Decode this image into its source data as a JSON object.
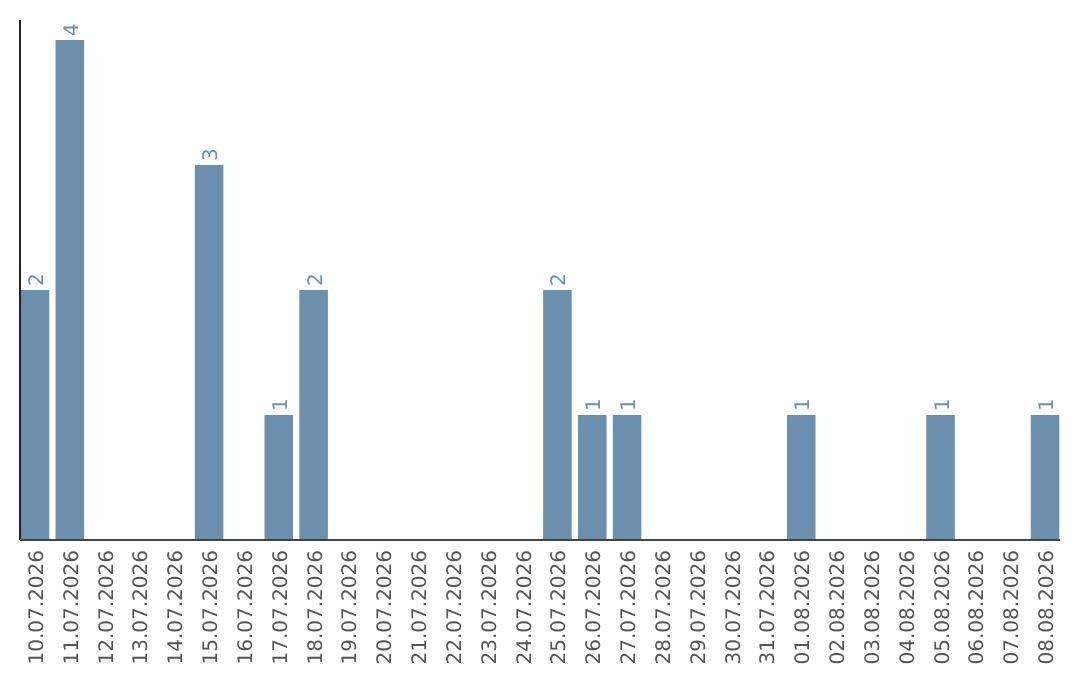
{
  "chart_data": {
    "type": "bar",
    "categories": [
      "10.07.2026",
      "11.07.2026",
      "12.07.2026",
      "13.07.2026",
      "14.07.2026",
      "15.07.2026",
      "16.07.2026",
      "17.07.2026",
      "18.07.2026",
      "19.07.2026",
      "20.07.2026",
      "21.07.2026",
      "22.07.2026",
      "23.07.2026",
      "24.07.2026",
      "25.07.2026",
      "26.07.2026",
      "27.07.2026",
      "28.07.2026",
      "29.07.2026",
      "30.07.2026",
      "31.07.2026",
      "01.08.2026",
      "02.08.2026",
      "03.08.2026",
      "04.08.2026",
      "05.08.2026",
      "06.08.2026",
      "07.08.2026",
      "08.08.2026"
    ],
    "values": [
      2,
      4,
      0,
      0,
      0,
      3,
      0,
      1,
      2,
      0,
      0,
      0,
      0,
      0,
      0,
      2,
      1,
      1,
      0,
      0,
      0,
      0,
      1,
      0,
      0,
      0,
      1,
      0,
      0,
      1
    ],
    "value_labels": [
      "2",
      "4",
      null,
      null,
      null,
      "3",
      null,
      "1",
      "2",
      null,
      null,
      null,
      null,
      null,
      null,
      "2",
      "1",
      "1",
      null,
      null,
      null,
      null,
      "1",
      null,
      null,
      null,
      "1",
      null,
      null,
      "1"
    ],
    "color": "#6d8fae",
    "ylim": [
      0,
      4.16
    ],
    "tick_labels": "x"
  }
}
